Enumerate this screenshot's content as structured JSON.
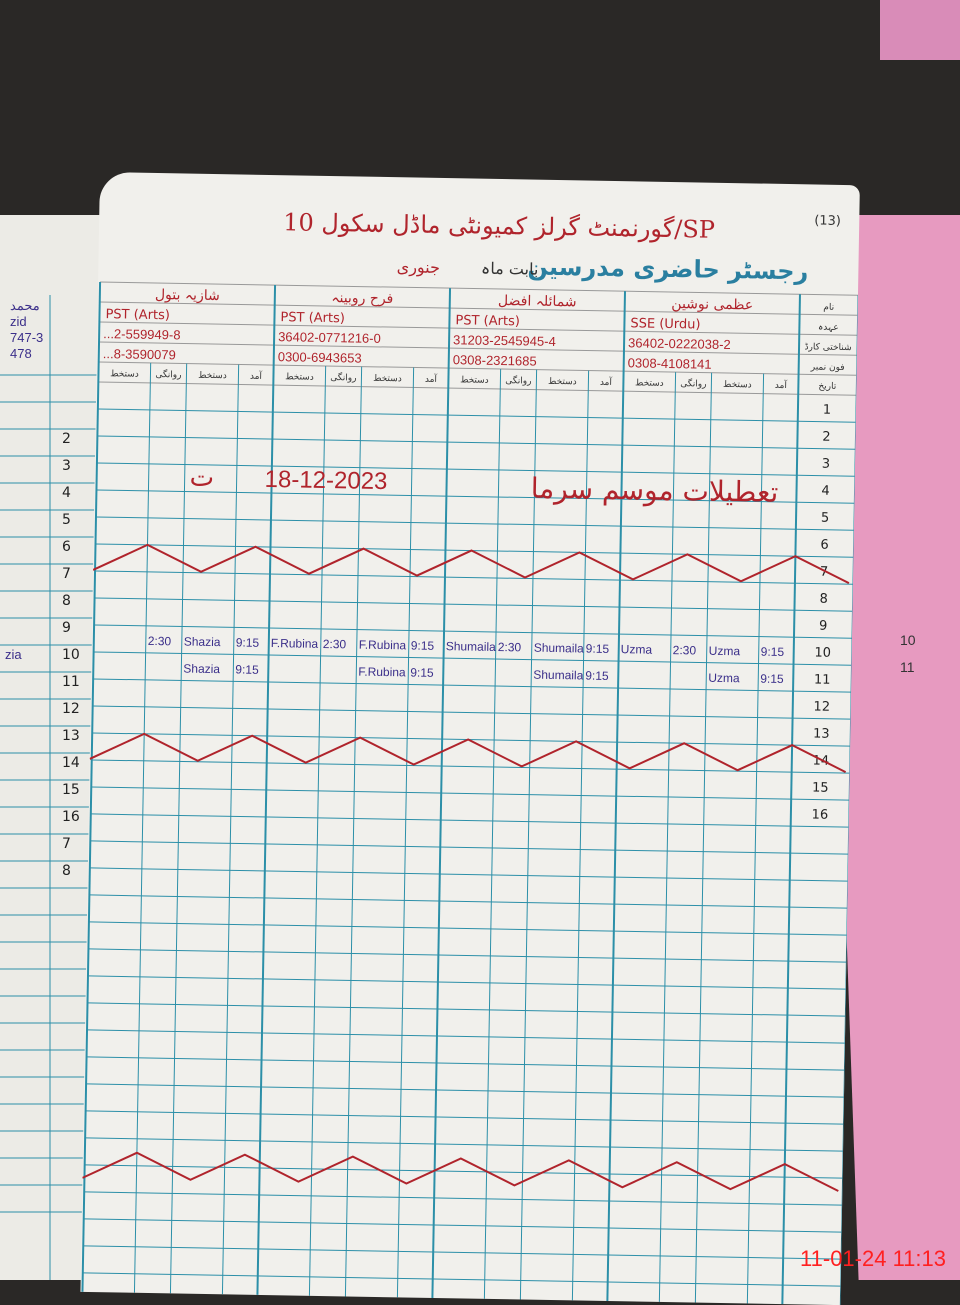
{
  "register": {
    "page_number": "(13)",
    "title": "رجسٹر حاضری مدرسین",
    "school": "گورنمنٹ گرلز کمیونٹی ماڈل سکول 10/SP",
    "month_label": "بابت ماہ",
    "month": "جنوری",
    "row_labels": [
      "نام",
      "عہدہ",
      "شناختی کارڈ",
      "فون نمبر",
      "تاریخ"
    ],
    "sub_headers": [
      "آمد",
      "دستخط",
      "روانگی",
      "دستخط"
    ],
    "teachers": [
      {
        "name": "عظمی نوشین",
        "designation": "SSE (Urdu)",
        "cnic": "36402-0222038-2",
        "phone": "0308-4108141"
      },
      {
        "name": "شمائلہ افضل",
        "designation": "PST (Arts)",
        "cnic": "31203-2545945-4",
        "phone": "0308-2321685"
      },
      {
        "name": "فرح روبینہ",
        "designation": "PST (Arts)",
        "cnic": "36402-0771216-0",
        "phone": "0300-6943653"
      },
      {
        "name": "شازیہ بتول",
        "designation": "PST (Arts)",
        "cnic": "...2-559949-8",
        "phone": "...8-3590079"
      }
    ],
    "dates": [
      "1",
      "2",
      "3",
      "4",
      "5",
      "6",
      "7",
      "8",
      "9",
      "10",
      "11",
      "12",
      "13",
      "14",
      "15",
      "16"
    ],
    "left_page_dates": [
      "2",
      "3",
      "4",
      "5",
      "6",
      "7",
      "8",
      "9",
      "10",
      "11",
      "12",
      "13",
      "14",
      "15",
      "16",
      "7",
      "8"
    ],
    "left_page_header": [
      "محمد",
      "zid",
      "747-3",
      "478"
    ],
    "annotation_date": "18-12-2023",
    "annotation_text": "تعطیلات موسم سرما",
    "annotation_mark": "ت",
    "entries": [
      {
        "row": "10",
        "items": [
          "2:30",
          "Shazia",
          "9:15",
          "F.Rubina",
          "2:30",
          "F.Rubina",
          "9:15",
          "Shumaila",
          "2:30",
          "Shumaila",
          "9:15",
          "Uzma",
          "2:30",
          "Uzma",
          "9:15"
        ]
      },
      {
        "row": "11",
        "items": [
          "Shazia",
          "9:15",
          "F.Rubina",
          "9:15",
          "Shumaila",
          "9:15",
          "Uzma",
          "9:15"
        ]
      }
    ],
    "left_page_entry": "zia"
  },
  "timestamp": "11-01-24  11:13",
  "colors": {
    "grid": "#2c8fa8",
    "ink_red": "#b0242c",
    "ink_blue": "#3b2f8a",
    "cover": "#e79ac0"
  }
}
